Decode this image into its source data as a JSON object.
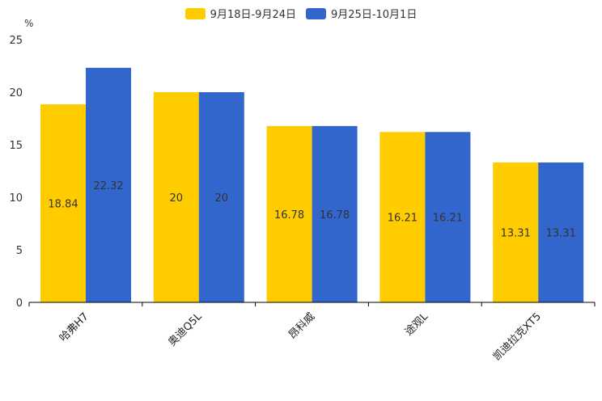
{
  "chart_data": {
    "type": "bar",
    "ylabel": "%",
    "ylim": [
      0,
      25
    ],
    "yticks": [
      "0",
      "5",
      "10",
      "15",
      "20",
      "25"
    ],
    "categories": [
      "哈弗H7",
      "奥迪Q5L",
      "昂科威",
      "途观L",
      "凯迪拉克XT5"
    ],
    "series": [
      {
        "name": "9月18日-9月24日",
        "color": "#FFCC00",
        "values": [
          18.84,
          20,
          16.78,
          16.21,
          13.31
        ]
      },
      {
        "name": "9月25日-10月1日",
        "color": "#3366CC",
        "values": [
          22.32,
          20,
          16.78,
          16.21,
          13.31
        ]
      }
    ],
    "legend_position": "top"
  }
}
